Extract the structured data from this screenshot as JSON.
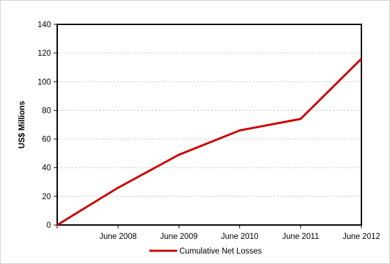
{
  "chart_data": {
    "type": "line",
    "title": "",
    "xlabel": "",
    "ylabel": "US$ Millions",
    "ylim": [
      0,
      140
    ],
    "yticks": [
      0,
      20,
      40,
      60,
      80,
      100,
      120,
      140
    ],
    "categories": [
      "",
      "June 2008",
      "June 2009",
      "June 2010",
      "June 2011",
      "June 2012"
    ],
    "series": [
      {
        "name": "Cumulative Net Losses",
        "color": "#cc0000",
        "values": [
          0,
          26,
          49,
          66,
          74,
          116
        ]
      }
    ],
    "grid": true,
    "legend_position": "bottom"
  }
}
